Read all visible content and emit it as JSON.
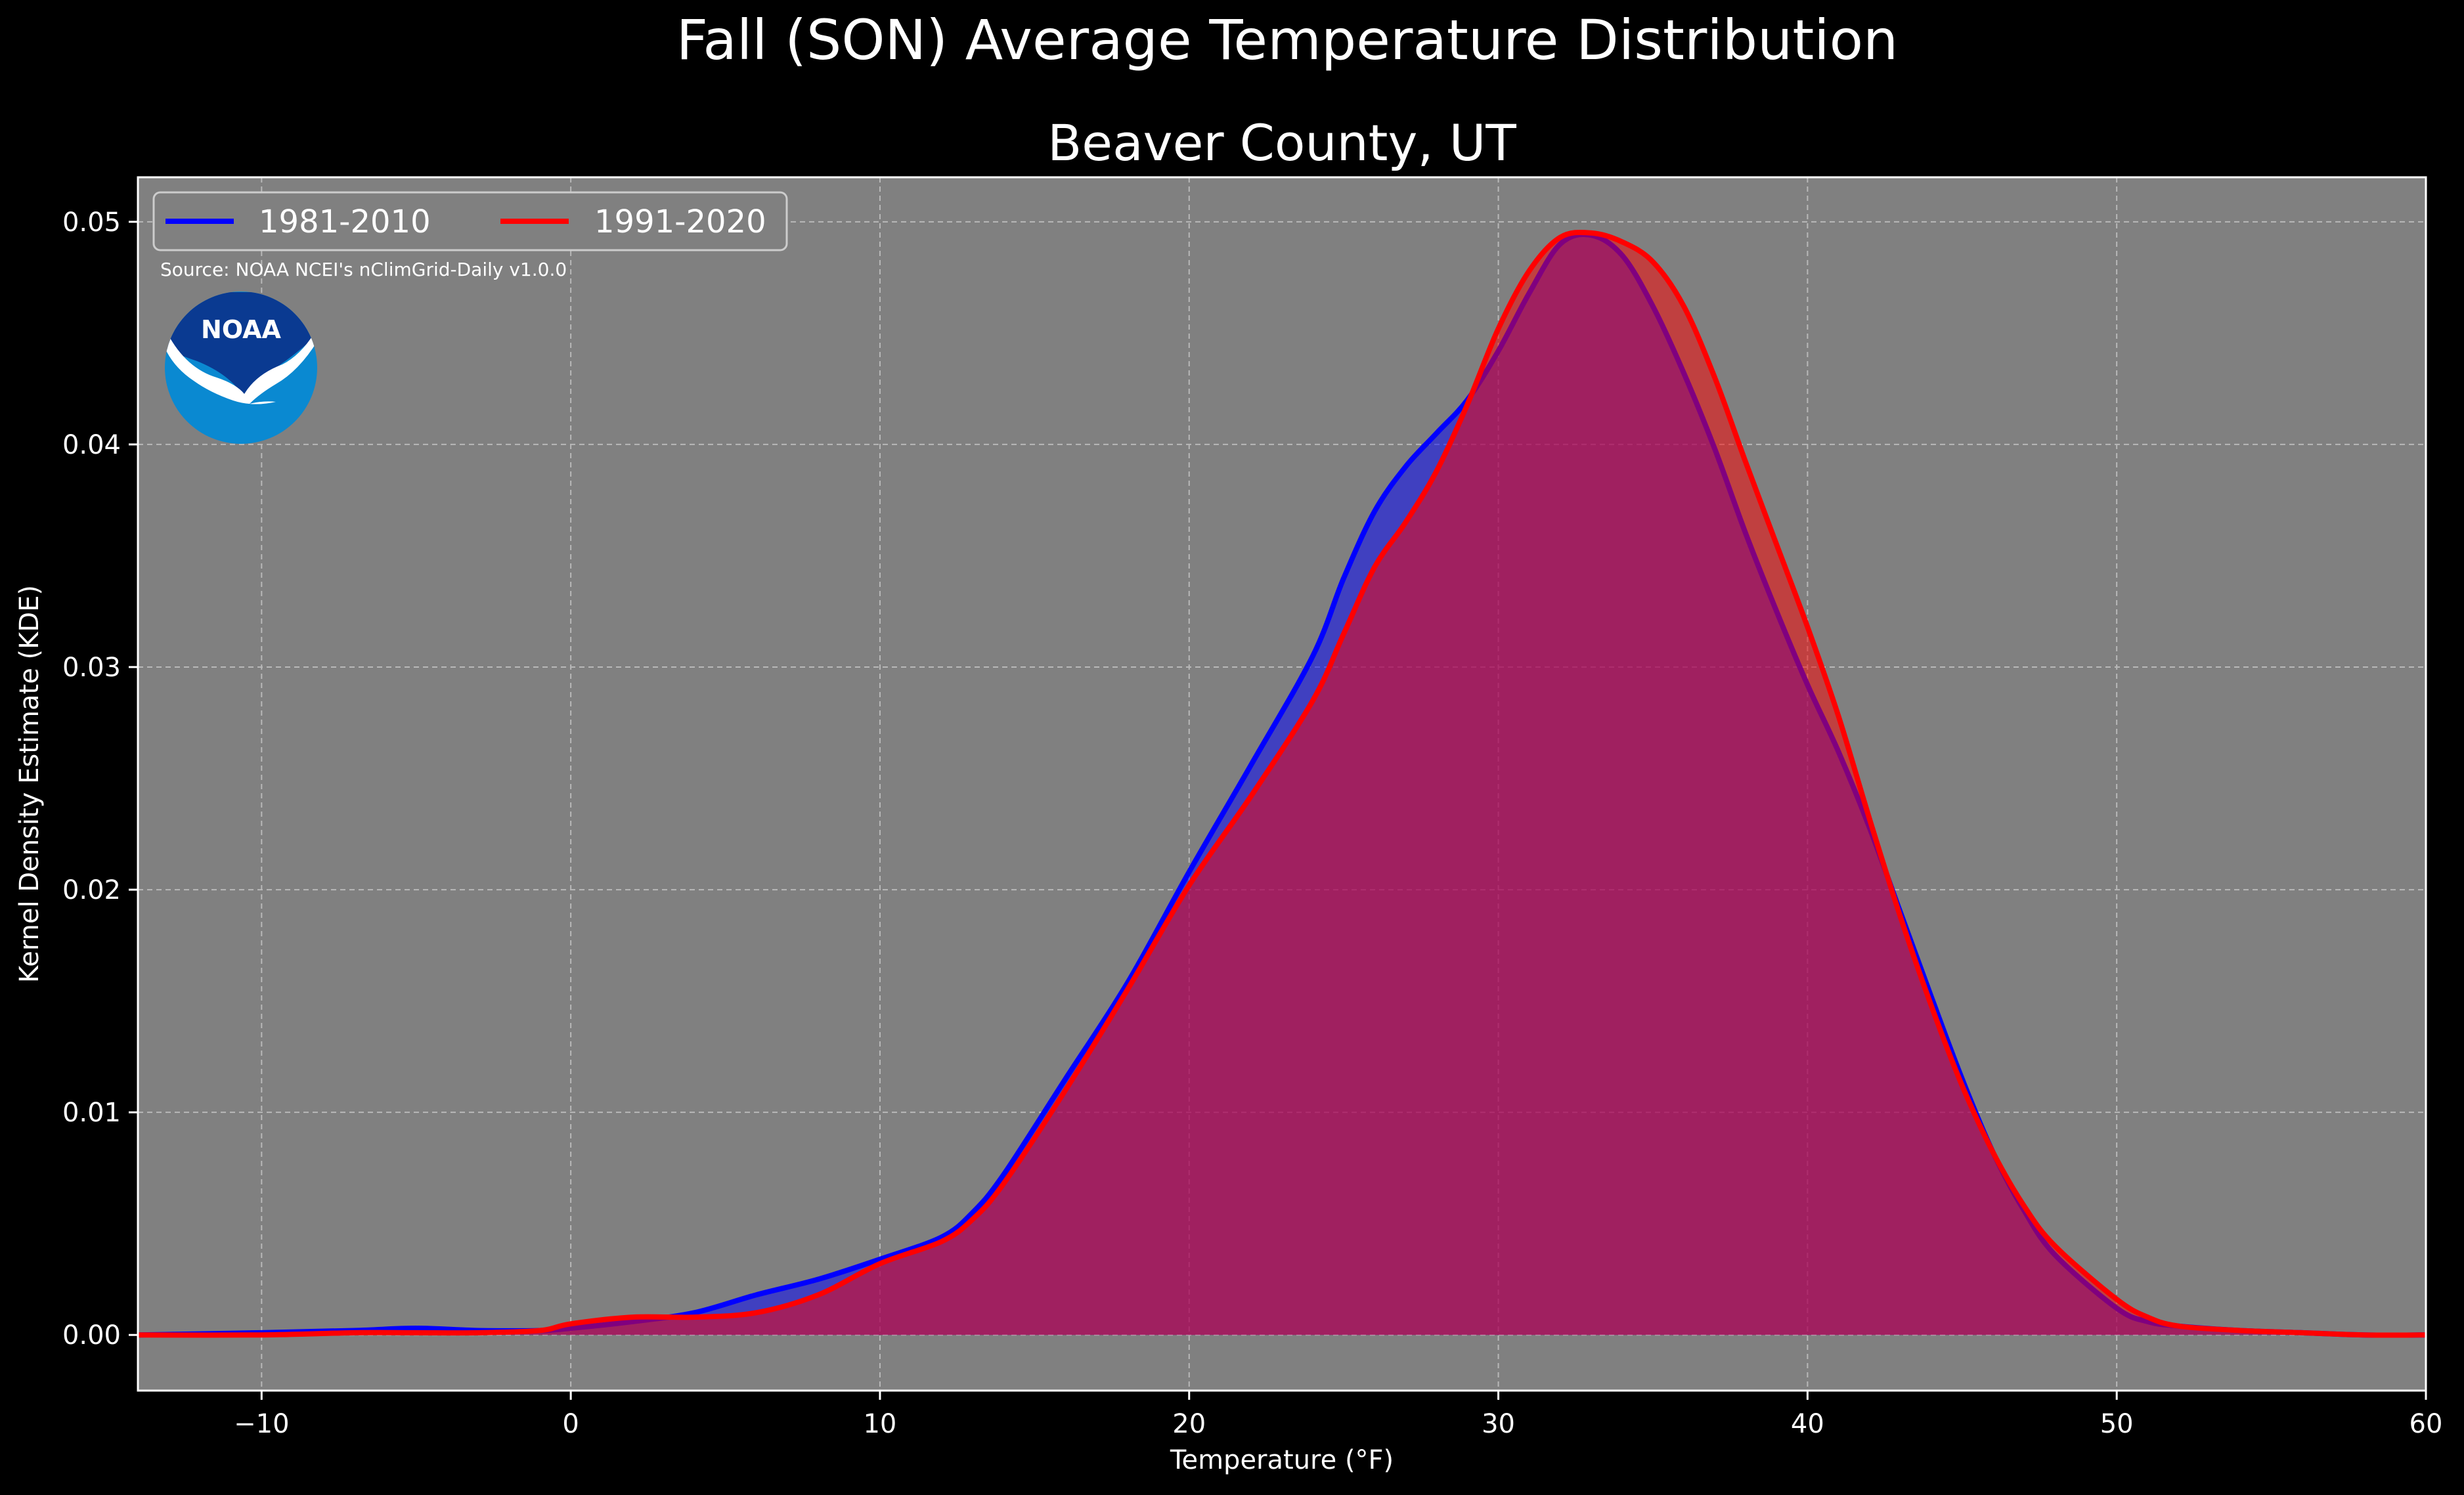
{
  "colors": {
    "background": "#000000",
    "plot_background": "#808080",
    "series_1981_2010": "#0000ff",
    "series_1991_2020": "#ff0000",
    "logo_dark_blue": "#0a3a91",
    "logo_light_blue": "#0a89d1"
  },
  "logo": {
    "icon": "noaa-logo-icon",
    "text": "NOAA"
  },
  "source_text": "Source: NOAA NCEI's nClimGrid-Daily v1.0.0",
  "chart_data": {
    "type": "area",
    "title": "Fall (SON) Average Temperature Distribution",
    "subtitle": "Beaver County, UT",
    "xlabel": "Temperature (°F)",
    "ylabel": "Kernel Density Estimate (KDE)",
    "xlim": [
      -14,
      60
    ],
    "ylim": [
      -0.0025,
      0.052
    ],
    "xticks": [
      -10,
      0,
      10,
      20,
      30,
      40,
      50,
      60
    ],
    "xtick_labels": [
      "−10",
      "0",
      "10",
      "20",
      "30",
      "40",
      "50",
      "60"
    ],
    "yticks": [
      0.0,
      0.01,
      0.02,
      0.03,
      0.04,
      0.05
    ],
    "ytick_labels": [
      "0.00",
      "0.01",
      "0.02",
      "0.03",
      "0.04",
      "0.05"
    ],
    "grid": true,
    "legend_position": "top-left",
    "series": [
      {
        "name": "1981-2010",
        "color": "#0000ff",
        "x": [
          -14,
          -10,
          -7,
          -5,
          -3,
          -1,
          0,
          2,
          4,
          6,
          8,
          10,
          12,
          13,
          14,
          16,
          18,
          20,
          22,
          24,
          25,
          26,
          27,
          28,
          29,
          30,
          31,
          32,
          33,
          34,
          35,
          36,
          37,
          38,
          39,
          40,
          41,
          42,
          43,
          44,
          45,
          46,
          47,
          48,
          50,
          51,
          52,
          54,
          56,
          58,
          60
        ],
        "y": [
          0.0,
          0.0001,
          0.0002,
          0.0003,
          0.0002,
          0.0002,
          0.0003,
          0.0006,
          0.001,
          0.0018,
          0.0025,
          0.0034,
          0.0044,
          0.0055,
          0.0072,
          0.0115,
          0.0158,
          0.0208,
          0.0256,
          0.0305,
          0.034,
          0.037,
          0.039,
          0.0405,
          0.042,
          0.0442,
          0.0468,
          0.049,
          0.0494,
          0.0485,
          0.0462,
          0.0432,
          0.0398,
          0.036,
          0.0325,
          0.0292,
          0.0262,
          0.0228,
          0.019,
          0.0152,
          0.0115,
          0.0082,
          0.0056,
          0.0036,
          0.0012,
          0.0006,
          0.0004,
          0.0002,
          0.0001,
          0.0,
          0.0
        ]
      },
      {
        "name": "1991-2020",
        "color": "#ff0000",
        "x": [
          -14,
          -10,
          -7,
          -5,
          -3,
          -1,
          0,
          2,
          4,
          6,
          8,
          10,
          12,
          13,
          14,
          16,
          18,
          20,
          22,
          24,
          25,
          26,
          27,
          28,
          29,
          30,
          31,
          32,
          33,
          34,
          35,
          36,
          37,
          38,
          39,
          40,
          41,
          42,
          43,
          44,
          45,
          46,
          47,
          48,
          50,
          51,
          52,
          54,
          56,
          58,
          60
        ],
        "y": [
          0.0,
          0.0,
          0.0001,
          0.0001,
          0.0001,
          0.0002,
          0.0005,
          0.0008,
          0.0008,
          0.001,
          0.0018,
          0.0032,
          0.0042,
          0.0052,
          0.0068,
          0.011,
          0.0155,
          0.0202,
          0.0242,
          0.0285,
          0.0315,
          0.0345,
          0.0365,
          0.0388,
          0.0418,
          0.0452,
          0.0478,
          0.0493,
          0.0495,
          0.0491,
          0.0482,
          0.0462,
          0.043,
          0.0392,
          0.0355,
          0.0318,
          0.0278,
          0.0232,
          0.0188,
          0.0148,
          0.0112,
          0.0082,
          0.0058,
          0.004,
          0.0016,
          0.0008,
          0.0004,
          0.0002,
          0.0001,
          0.0,
          0.0
        ]
      }
    ]
  }
}
